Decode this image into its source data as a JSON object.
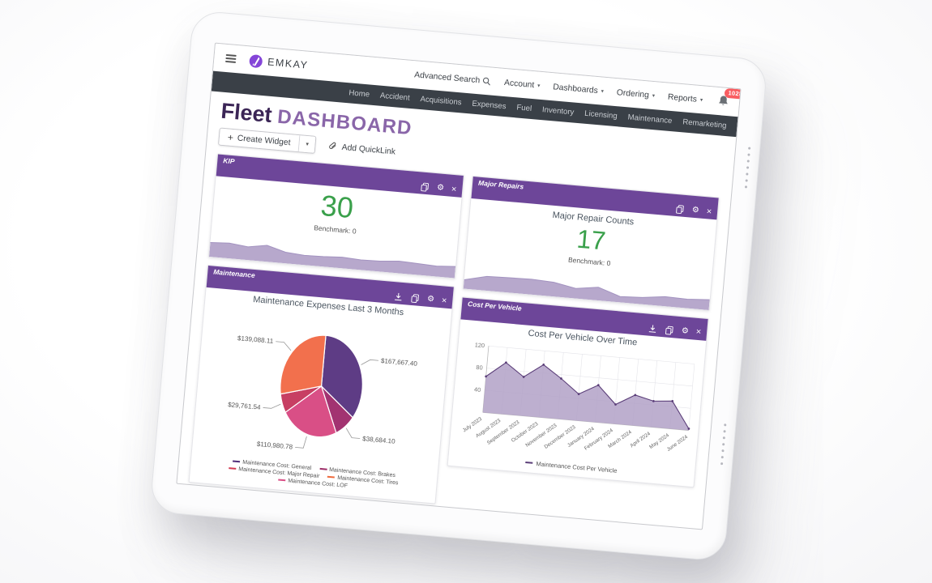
{
  "topbar": {
    "brand": "EMKAY",
    "nav": [
      {
        "label": "Advanced Search",
        "icon": "search"
      },
      {
        "label": "Account",
        "caret": "▾"
      },
      {
        "label": "Dashboards",
        "caret": "▾"
      },
      {
        "label": "Ordering",
        "caret": "▾"
      },
      {
        "label": "Reports",
        "caret": "▾"
      }
    ],
    "notification_count": "1028"
  },
  "subnav": [
    "Home",
    "Accident",
    "Acquisitions",
    "Expenses",
    "Fuel",
    "Inventory",
    "Licensing",
    "Maintenance",
    "Remarketing"
  ],
  "page": {
    "title_primary": "Fleet",
    "title_secondary": "DASHBOARD",
    "create_widget": "Create Widget",
    "add_quicklink": "Add QuickLink"
  },
  "widgets": {
    "kip": {
      "header": "KIP",
      "value": "30",
      "benchmark": "Benchmark: 0",
      "chart_data": {
        "type": "area",
        "values": [
          60,
          65,
          55,
          70,
          45,
          38,
          40,
          45,
          40,
          42,
          50,
          46,
          42,
          48
        ],
        "ylim": [
          0,
          100
        ]
      }
    },
    "major_repairs": {
      "header": "Major Repairs",
      "title": "Major Repair Counts",
      "value": "17",
      "benchmark": "Benchmark: 0",
      "chart_data": {
        "type": "area",
        "values": [
          35,
          60,
          63,
          65,
          60,
          40,
          55,
          20,
          25,
          38,
          35,
          42
        ],
        "ylim": [
          0,
          100
        ]
      }
    },
    "maintenance": {
      "header": "Maintenance",
      "title": "Maintenance Expenses Last 3 Months",
      "chart_data": {
        "type": "pie",
        "slices": [
          {
            "label": "Maintenance Cost: General",
            "value": 167667.4,
            "value_label": "$167,667.40",
            "color": "#5e3c85"
          },
          {
            "label": "Maintenance Cost: Brakes",
            "value": 38684.1,
            "value_label": "$38,684.10",
            "color": "#a23371"
          },
          {
            "label": "Maintenance Cost: LOF",
            "value": 110980.78,
            "value_label": "$110,980.78",
            "color": "#d94f86"
          },
          {
            "label": "Maintenance Cost: Major Repair",
            "value": 29761.54,
            "value_label": "$29,761.54",
            "color": "#c73f63"
          },
          {
            "label": "Maintenance Cost: Tires",
            "value": 139088.11,
            "value_label": "$139,088.11",
            "color": "#f2704d"
          }
        ]
      },
      "legend": [
        {
          "label": "Maintenance Cost: General",
          "color": "#4f2d78"
        },
        {
          "label": "Maintenance Cost: Brakes",
          "color": "#9c2d67"
        },
        {
          "label": "Maintenance Cost: Major Repair",
          "color": "#d23b52"
        },
        {
          "label": "Maintenance Cost: Tires",
          "color": "#ee6a3c"
        },
        {
          "label": "Maintenance Cost: LOF",
          "color": "#d94f86"
        }
      ]
    },
    "cost_per_vehicle": {
      "header": "Cost Per Vehicle",
      "title": "Cost Per Vehicle Over Time",
      "chart_data": {
        "type": "area",
        "x": [
          "July 2023",
          "August 2023",
          "September 2023",
          "October 2023",
          "November 2023",
          "December 2023",
          "January 2024",
          "February 2024",
          "March 2024",
          "April 2024",
          "May 2024",
          "June 2024"
        ],
        "values": [
          65,
          93,
          70,
          95,
          73,
          48,
          67,
          35,
          55,
          47,
          50,
          3
        ],
        "yticks": [
          40,
          80,
          120
        ],
        "ylim": [
          0,
          120
        ],
        "grid": true,
        "legend": "Maintenance Cost Per Vehicle",
        "line_color": "#5a3d78",
        "fill_color": "#b2a1c7"
      }
    }
  },
  "colors": {
    "widget_header": "#6d4699",
    "accent_green": "#3aa04b",
    "navbar_dark": "#3a4047",
    "badge_red": "#f95d61",
    "title_dark": "#3b2556",
    "title_light": "#8a66a9",
    "spark_fill": "#b7a8cc",
    "brand_violet": "#8445d8"
  }
}
